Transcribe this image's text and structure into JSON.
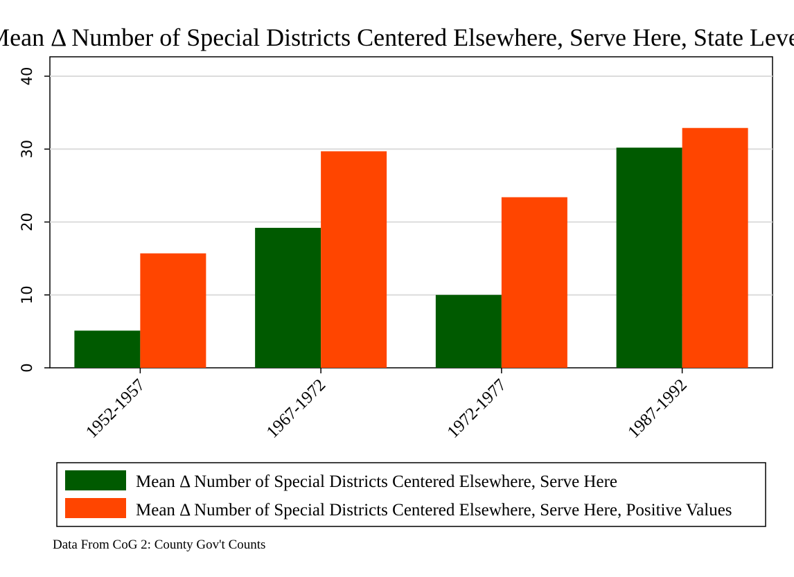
{
  "chart_data": {
    "type": "bar",
    "title": "Mean Δ Number of Special Districts Centered Elsewhere, Serve Here, State Level",
    "categories": [
      "1952-1957",
      "1967-1972",
      "1972-1977",
      "1987-1992"
    ],
    "series": [
      {
        "name": "Mean Δ Number of Special Districts Centered Elsewhere, Serve Here",
        "color": "#005a00",
        "values": [
          5.1,
          19.2,
          10.0,
          30.2
        ]
      },
      {
        "name": "Mean Δ Number of Special Districts Centered Elsewhere, Serve Here, Positive Values",
        "color": "#ff4500",
        "values": [
          15.7,
          29.7,
          23.4,
          32.9
        ]
      }
    ],
    "xlabel": "",
    "ylabel": "",
    "ylim": [
      0,
      40
    ],
    "yticks": [
      0,
      10,
      20,
      30,
      40
    ],
    "grid": true,
    "legend_position": "bottom",
    "note": "Data From CoG 2: County Gov't Counts"
  }
}
